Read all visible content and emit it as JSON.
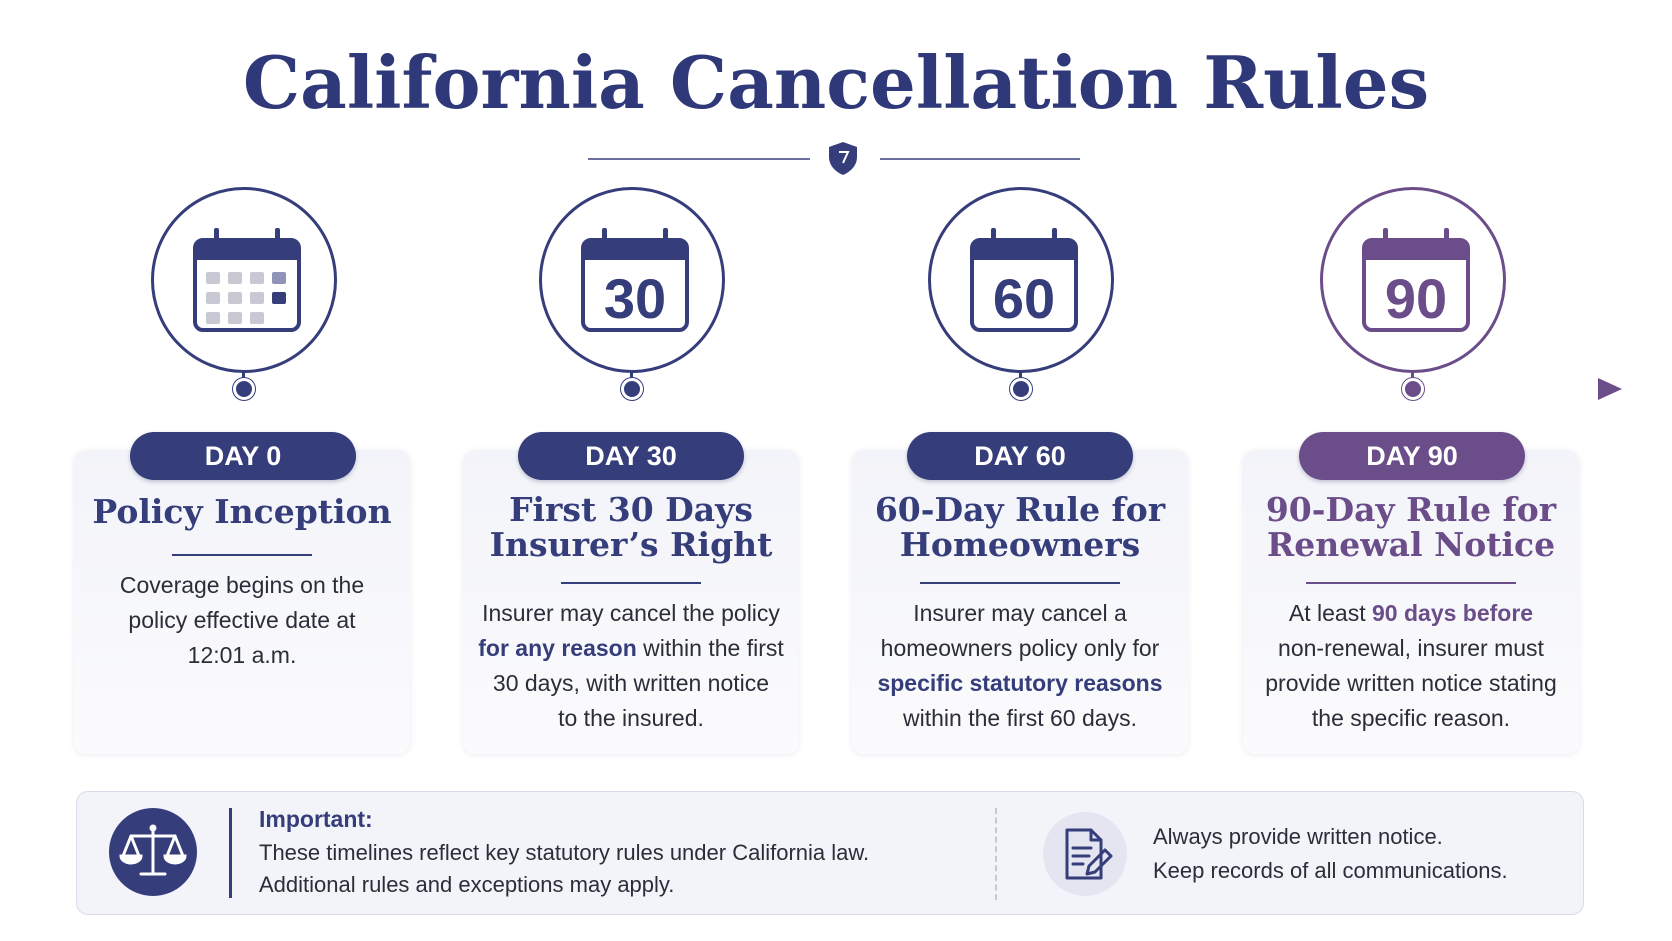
{
  "title": "California Cancellation Rules",
  "colors": {
    "navy": "#353d7a",
    "purple": "#6b4d8a",
    "title": "#2f3878"
  },
  "milestones": [
    {
      "icon_number": "",
      "day_label": "DAY 0",
      "title_lines": [
        "Policy Inception"
      ],
      "body_lines": [
        [
          "Coverage begins on the"
        ],
        [
          "policy effective date at"
        ],
        [
          "12:01 a.m."
        ]
      ],
      "body_pre": "Coverage begins on the",
      "body_line2": "policy effective date at",
      "body_line3": "12:01 a.m."
    },
    {
      "icon_number": "30",
      "day_label": "DAY 30",
      "title_line1": "First 30 Days",
      "title_line2": "Insurer’s Right",
      "l1": "Insurer may cancel the policy",
      "l2_hl": "for any reason",
      "l2_rest": " within the first",
      "l3": "30 days, with written notice",
      "l4": "to the insured."
    },
    {
      "icon_number": "60",
      "day_label": "DAY 60",
      "title_line1": "60-Day Rule for",
      "title_line2": "Homeowners",
      "l1": "Insurer may cancel a",
      "l2": "homeowners policy only for",
      "l3_hl": "specific statutory reasons",
      "l4": "within the first 60 days."
    },
    {
      "icon_number": "90",
      "day_label": "DAY 90",
      "title_line1": "90-Day Rule for",
      "title_line2": "Renewal Notice",
      "l1_pre": "At least ",
      "l1_hl": "90 days before",
      "l2": "non-renewal, insurer must",
      "l3": "provide written notice stating",
      "l4": "the specific reason."
    }
  ],
  "important": {
    "heading": "Important:",
    "line1": "These timelines reflect key statutory rules under California law.",
    "line2": "Additional rules and exceptions may apply.",
    "icon": "scales-icon"
  },
  "note": {
    "line1": "Always provide written notice.",
    "line2": "Keep records of all communications.",
    "icon": "document-pen-icon"
  }
}
